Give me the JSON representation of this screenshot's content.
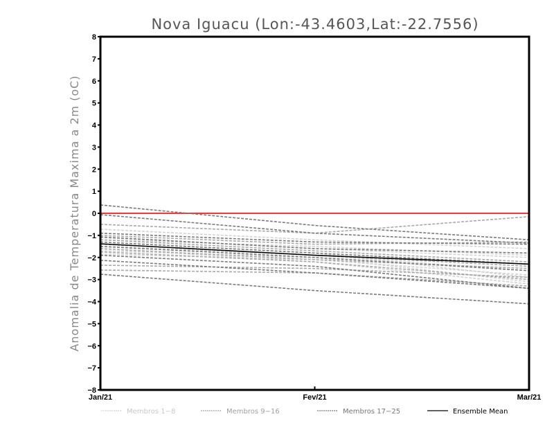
{
  "chart_data": {
    "type": "line",
    "title": "Nova Iguacu (Lon:-43.4603,Lat:-22.7556)",
    "xlabel": "",
    "ylabel": "Anomalia de Temperatura Maxima a 2m (oC)",
    "categories": [
      "Jan/21",
      "Fev/21",
      "Mar/21"
    ],
    "ylim": [
      -8,
      8
    ],
    "yticks": [
      -8,
      -7,
      -6,
      -5,
      -4,
      -3,
      -2,
      -1,
      0,
      1,
      2,
      3,
      4,
      5,
      6,
      7,
      8
    ],
    "grid": false,
    "legend_position": "bottom",
    "reference_line": {
      "value": 0,
      "color": "#ff3333"
    },
    "groups": [
      {
        "name": "Membros 1-8",
        "color": "#d2d2d2",
        "series": [
          [
            -0.72,
            -1.2,
            -1.6
          ],
          [
            -1.1,
            -1.6,
            -2.0
          ],
          [
            -1.3,
            -1.8,
            -2.9
          ],
          [
            -1.5,
            -1.9,
            -2.6
          ],
          [
            -1.7,
            -2.0,
            -3.1
          ],
          [
            -1.85,
            -2.1,
            -2.8
          ],
          [
            -1.2,
            -1.5,
            -1.9
          ],
          [
            -1.6,
            -2.2,
            -3.2
          ]
        ]
      },
      {
        "name": "Membros 9-16",
        "color": "#a8a8a8",
        "series": [
          [
            -0.5,
            -0.9,
            -0.15
          ],
          [
            -1.0,
            -1.4,
            -1.3
          ],
          [
            -1.2,
            -1.7,
            -2.2
          ],
          [
            -1.4,
            -1.9,
            -2.4
          ],
          [
            -1.6,
            -2.1,
            -2.5
          ],
          [
            -1.75,
            -2.2,
            -3.0
          ],
          [
            -2.35,
            -2.5,
            -2.9
          ],
          [
            -2.57,
            -2.7,
            -3.3
          ]
        ]
      },
      {
        "name": "Membros 17-25",
        "color": "#7a7a7a",
        "series": [
          [
            0.38,
            -0.55,
            -1.2
          ],
          [
            -0.06,
            -0.9,
            -1.35
          ],
          [
            -0.9,
            -1.3,
            -1.4
          ],
          [
            -1.07,
            -1.6,
            -1.8
          ],
          [
            -1.3,
            -1.8,
            -2.3
          ],
          [
            -1.5,
            -2.0,
            -2.6
          ],
          [
            -2.13,
            -2.7,
            -3.4
          ],
          [
            -2.76,
            -3.5,
            -4.1
          ],
          [
            -1.9,
            -2.4,
            -3.4
          ]
        ]
      }
    ],
    "ensemble_mean": {
      "name": "Ensemble Mean",
      "color": "#000000",
      "values": [
        -1.38,
        -1.9,
        -2.3
      ]
    }
  }
}
